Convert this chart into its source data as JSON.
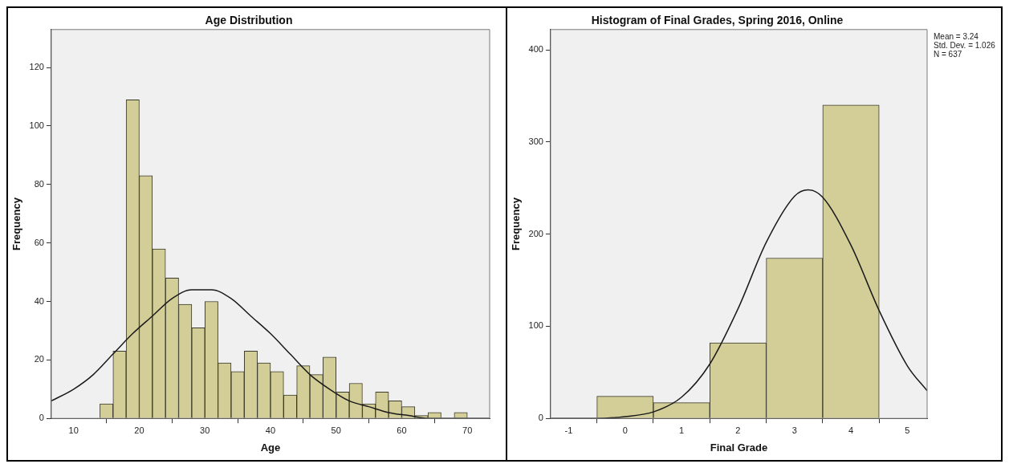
{
  "chart_data": [
    {
      "type": "histogram",
      "title": "Age Distribution",
      "xlabel": "Age",
      "ylabel": "Frequency",
      "color": "#d3ce97",
      "bins": [
        14,
        16,
        18,
        20,
        22,
        24,
        26,
        28,
        30,
        32,
        34,
        36,
        38,
        40,
        42,
        44,
        46,
        48,
        50,
        52,
        54,
        56,
        58,
        60,
        62,
        64,
        66,
        68,
        70
      ],
      "values": [
        5,
        23,
        109,
        83,
        58,
        48,
        39,
        31,
        40,
        19,
        16,
        23,
        19,
        16,
        8,
        18,
        15,
        21,
        9,
        12,
        5,
        9,
        6,
        4,
        1,
        2,
        0,
        2
      ],
      "series": [
        {
          "type": "line",
          "color": "#1a1a1a",
          "x": [
            6.6,
            10,
            13,
            16,
            19,
            22,
            25,
            28,
            29.5,
            31,
            34,
            37,
            40,
            43,
            46,
            49,
            52,
            55,
            58,
            61,
            64,
            67,
            70,
            73.4
          ],
          "values": [
            6,
            10,
            15,
            22,
            29,
            35,
            41,
            44,
            44,
            44,
            41,
            35,
            29,
            22,
            15,
            10,
            6,
            4,
            2,
            1,
            0,
            0,
            0,
            0
          ]
        }
      ],
      "xlim": [
        6.6,
        73.4
      ],
      "xticks": [
        10,
        20,
        30,
        40,
        50,
        60,
        70
      ],
      "ylim": [
        0,
        133
      ],
      "yticks": [
        0,
        20,
        40,
        60,
        80,
        100,
        120
      ],
      "grid": false
    },
    {
      "type": "histogram",
      "title": "Histogram of Final Grades, Spring 2016, Online",
      "xlabel": "Final Grade",
      "ylabel": "Frequency",
      "color": "#d3ce97",
      "bins": [
        -0.5,
        0.5,
        1.5,
        2.5,
        3.5,
        4.5
      ],
      "values": [
        24,
        17,
        82,
        174,
        340
      ],
      "series": [
        {
          "type": "line",
          "color": "#1a1a1a",
          "x": [
            -1.32,
            -0.5,
            0,
            0.5,
            1,
            1.5,
            2,
            2.5,
            3,
            3.24,
            3.5,
            4,
            4.5,
            5,
            5.35
          ],
          "values": [
            0,
            0,
            2,
            7,
            23,
            59,
            119,
            191,
            241,
            248,
            240,
            188,
            117,
            57,
            30
          ]
        }
      ],
      "xlim": [
        -1.32,
        5.35
      ],
      "xticks": [
        -1,
        0,
        1,
        2,
        3,
        4,
        5
      ],
      "ylim": [
        0,
        422
      ],
      "yticks": [
        0,
        100,
        200,
        300,
        400
      ],
      "grid": false,
      "annotations": [
        "Mean = 3.24",
        "Std. Dev. = 1.026",
        "N = 637"
      ]
    }
  ]
}
